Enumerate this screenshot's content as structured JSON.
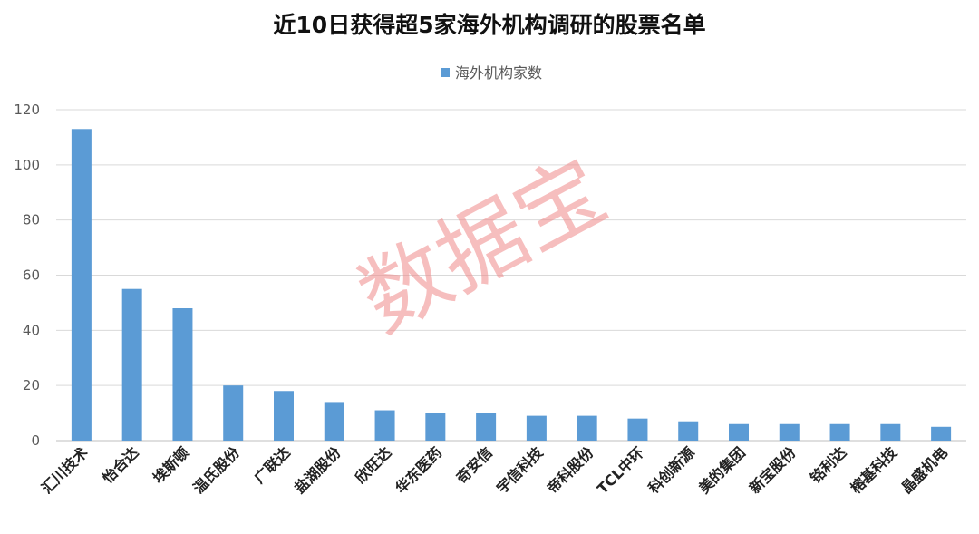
{
  "chart_data": {
    "type": "bar",
    "title": "近10日获得超5家海外机构调研的股票名单",
    "xlabel": "",
    "ylabel": "",
    "ylim": [
      0,
      120
    ],
    "yticks": [
      0,
      20,
      40,
      60,
      80,
      100,
      120
    ],
    "grid": true,
    "legend_placement": "top-center",
    "categories": [
      "汇川技术",
      "怡合达",
      "埃斯顿",
      "温氏股份",
      "广联达",
      "盐湖股份",
      "欣旺达",
      "华东医药",
      "奇安信",
      "宇信科技",
      "帝科股份",
      "TCL中环",
      "科创新源",
      "美的集团",
      "新宝股份",
      "铭利达",
      "榕基科技",
      "晶盛机电"
    ],
    "series": [
      {
        "name": "海外机构家数",
        "color": "#5b9bd5",
        "values": [
          113,
          55,
          48,
          20,
          18,
          14,
          11,
          10,
          10,
          9,
          9,
          8,
          7,
          6,
          6,
          6,
          6,
          5
        ]
      }
    ]
  },
  "watermark": {
    "text": "数据宝",
    "color": "#f08a8a"
  }
}
